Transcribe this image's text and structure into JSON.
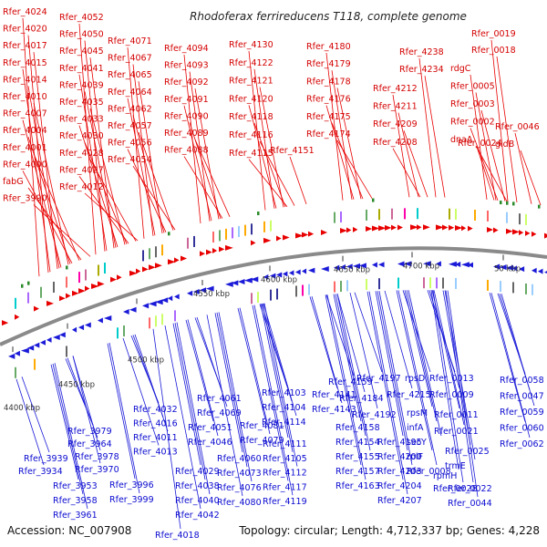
{
  "title": "Rhodoferax ferrireducens T118, complete genome",
  "footer": {
    "accession": "Accession: NC_007908",
    "summary": "Topology: circular; Length: 4,712,337 bp; Genes: 4,228"
  },
  "colors": {
    "forward": "#e80000",
    "reverse": "#1a1ad8",
    "backbone": "#8a8a8a",
    "rna": "#2a8a2a"
  },
  "ticks": [
    "4400 kbp",
    "4450 kbp",
    "4500 kbp",
    "4550 kbp",
    "4600 kbp",
    "4650 kbp",
    "4700 kbp",
    "50 kbp"
  ],
  "top_labels": [
    "Rfer_4024",
    "Rfer_4020",
    "Rfer_4017",
    "Rfer_4015",
    "Rfer_4014",
    "Rfer_4010",
    "Rfer_4007",
    "Rfer_4004",
    "Rfer_4001",
    "Rfer_4000",
    "fabG",
    "Rfer_3990",
    "Rfer_4052",
    "Rfer_4050",
    "Rfer_4045",
    "Rfer_4041",
    "Rfer_4039",
    "Rfer_4035",
    "Rfer_4033",
    "Rfer_4030",
    "Rfer_4028",
    "Rfer_4027",
    "Rfer_4012",
    "Rfer_4071",
    "Rfer_4067",
    "Rfer_4065",
    "Rfer_4064",
    "Rfer_4062",
    "Rfer_4057",
    "Rfer_4056",
    "Rfer_4054",
    "Rfer_4094",
    "Rfer_4093",
    "Rfer_4092",
    "Rfer_4091",
    "Rfer_4090",
    "Rfer_4089",
    "Rfer_4088",
    "Rfer_4130",
    "Rfer_4122",
    "Rfer_4121",
    "Rfer_4120",
    "Rfer_4118",
    "Rfer_4116",
    "Rfer_4115",
    "Rfer_4151",
    "Rfer_4180",
    "Rfer_4179",
    "Rfer_4178",
    "Rfer_4176",
    "Rfer_4175",
    "Rfer_4174",
    "Rfer_4238",
    "Rfer_4234",
    "Rfer_4212",
    "Rfer_4211",
    "Rfer_4209",
    "Rfer_4208",
    "Rfer_0019",
    "Rfer_0018",
    "rdgC",
    "Rfer_0005",
    "Rfer_0003",
    "Rfer_0002",
    "dnaA",
    "Rfer_0024",
    "Rfer_0046",
    "gidB"
  ],
  "bottom_labels": [
    "Rfer_3979",
    "Rfer_3964",
    "Rfer_3939",
    "Rfer_3978",
    "Rfer_3934",
    "Rfer_3970",
    "Rfer_3953",
    "Rfer_3958",
    "Rfer_3961",
    "Rfer_4032",
    "Rfer_4016",
    "Rfer_4011",
    "Rfer_4013",
    "Rfer_3996",
    "Rfer_3999",
    "Rfer_4018",
    "Rfer_4061",
    "Rfer_4069",
    "Rfer_4051",
    "Rfer_4046",
    "Rfer_4029",
    "Rfer_4038",
    "Rfer_4040",
    "Rfer_4042",
    "Rfer_4081",
    "Rfer_4079",
    "Rfer_4060",
    "Rfer_4073",
    "Rfer_4076",
    "Rfer_4080",
    "Rfer_4103",
    "Rfer_4104",
    "Rfer_4114",
    "Rfer_4111",
    "Rfer_4105",
    "Rfer_4112",
    "Rfer_4117",
    "Rfer_4119",
    "Rfer_4159",
    "Rfer_4141",
    "Rfer_4143",
    "Rfer_4158",
    "Rfer_4154",
    "Rfer_4155",
    "Rfer_4157",
    "Rfer_4163",
    "Rfer_4197",
    "Rfer_4184",
    "Rfer_4192",
    "Rfer_4195",
    "Rfer_4200",
    "Rfer_4203",
    "Rfer_4204",
    "Rfer_4207",
    "rpsD",
    "Rfer_4215",
    "rpsM",
    "infA",
    "secY",
    "rplF",
    "Rfer_0008",
    "Rfer_0013",
    "Rfer_0009",
    "Rfer_0011",
    "Rfer_0021",
    "Rfer_0025",
    "trmE",
    "rpmH",
    "Rfer_0028",
    "Rfer_0022",
    "Rfer_0044",
    "Rfer_0058",
    "Rfer_0047",
    "Rfer_0059",
    "Rfer_0060",
    "Rfer_0062"
  ]
}
